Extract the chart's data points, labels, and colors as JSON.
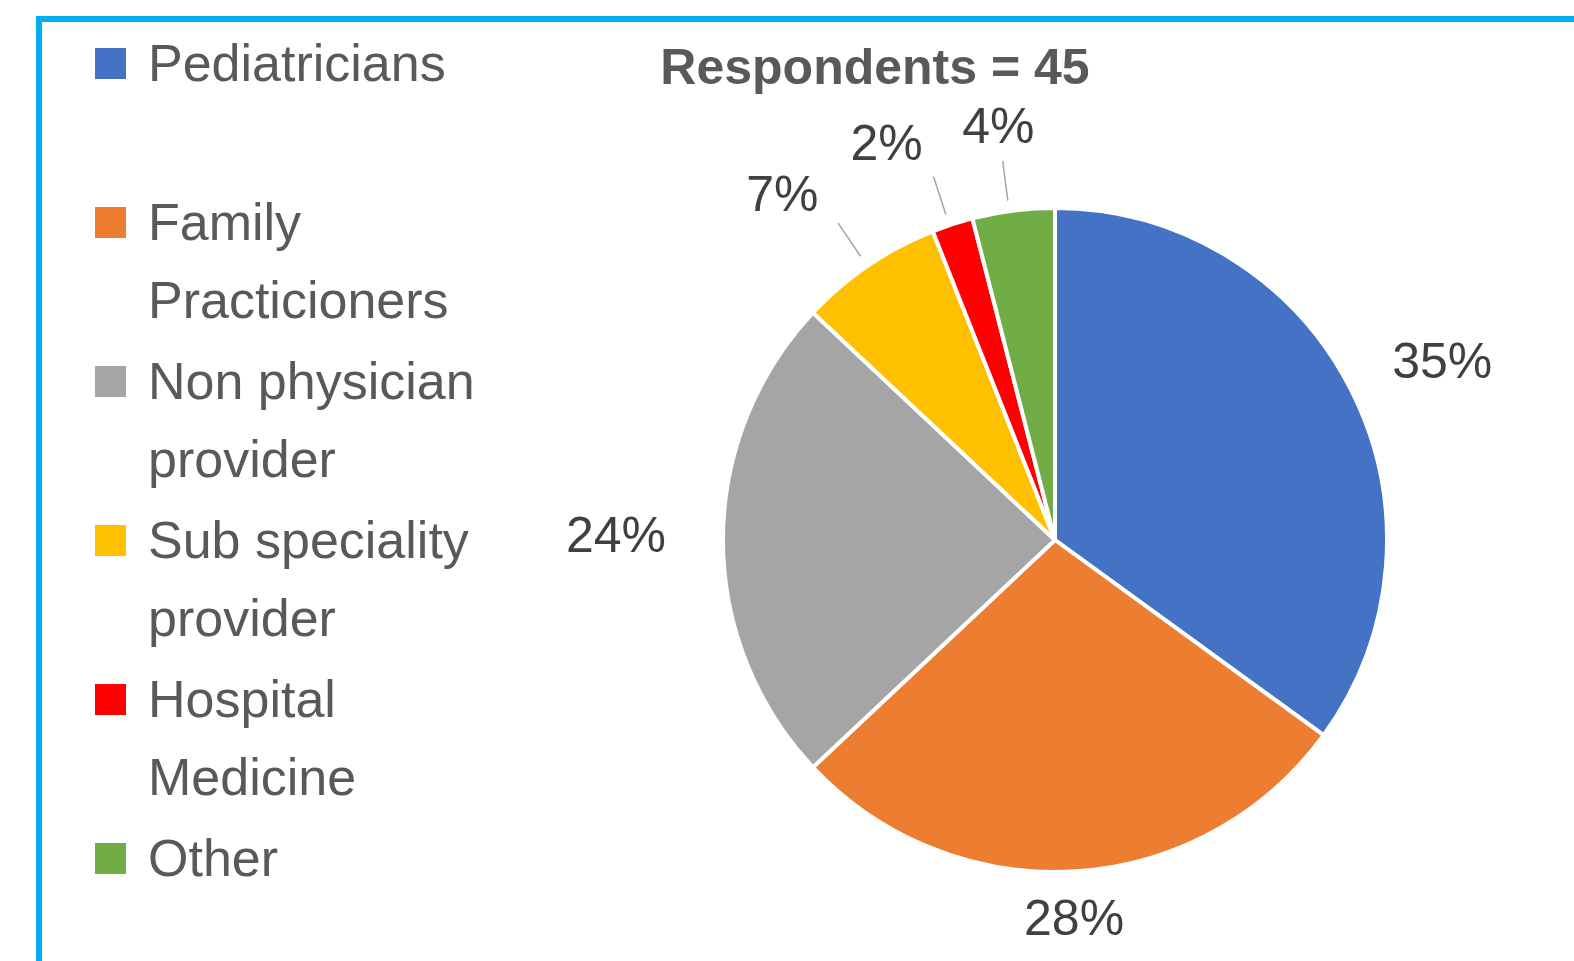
{
  "chart_data": {
    "type": "pie",
    "title": "Respondents = 45",
    "categories": [
      "Pediatricians",
      "Family Practicioners",
      "Non physician provider",
      "Sub speciality provider",
      "Hospital Medicine",
      "Other"
    ],
    "values": [
      35,
      28,
      24,
      7,
      2,
      4
    ],
    "colors": [
      "#4472c4",
      "#ed7d31",
      "#a5a5a5",
      "#ffc000",
      "#ff0000",
      "#70ad47"
    ],
    "value_labels": [
      "35%",
      "28%",
      "24%",
      "7%",
      "2%",
      "4%"
    ],
    "legend": "left"
  }
}
